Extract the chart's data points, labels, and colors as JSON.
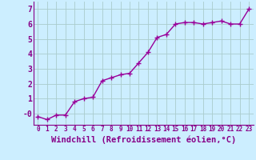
{
  "x": [
    0,
    1,
    2,
    3,
    4,
    5,
    6,
    7,
    8,
    9,
    10,
    11,
    12,
    13,
    14,
    15,
    16,
    17,
    18,
    19,
    20,
    21,
    22,
    23
  ],
  "y": [
    -0.2,
    -0.4,
    -0.1,
    -0.1,
    0.8,
    1.0,
    1.1,
    2.2,
    2.4,
    2.6,
    2.7,
    3.4,
    4.1,
    5.1,
    5.3,
    6.0,
    6.1,
    6.1,
    6.0,
    6.1,
    6.2,
    6.0,
    6.0,
    7.0
  ],
  "line_color": "#990099",
  "marker": "+",
  "markersize": 4,
  "linewidth": 1.0,
  "xlabel": "Windchill (Refroidissement éolien,°C)",
  "ylabel_ticks": [
    0,
    1,
    2,
    3,
    4,
    5,
    6,
    7
  ],
  "ytick_labels": [
    "-0",
    "1",
    "2",
    "3",
    "4",
    "5",
    "6",
    "7"
  ],
  "ylim": [
    -0.75,
    7.5
  ],
  "xlim": [
    -0.5,
    23.5
  ],
  "xtick_labels": [
    "0",
    "1",
    "2",
    "3",
    "4",
    "5",
    "6",
    "7",
    "8",
    "9",
    "10",
    "11",
    "12",
    "13",
    "14",
    "15",
    "16",
    "17",
    "18",
    "19",
    "20",
    "21",
    "22",
    "23"
  ],
  "background_color": "#cceeff",
  "grid_color": "#aacccc",
  "tick_color": "#880088",
  "spine_color": "#880088",
  "xlabel_color": "#880088",
  "xtick_fontsize": 5.5,
  "ytick_fontsize": 7.0,
  "xlabel_fontsize": 7.5
}
